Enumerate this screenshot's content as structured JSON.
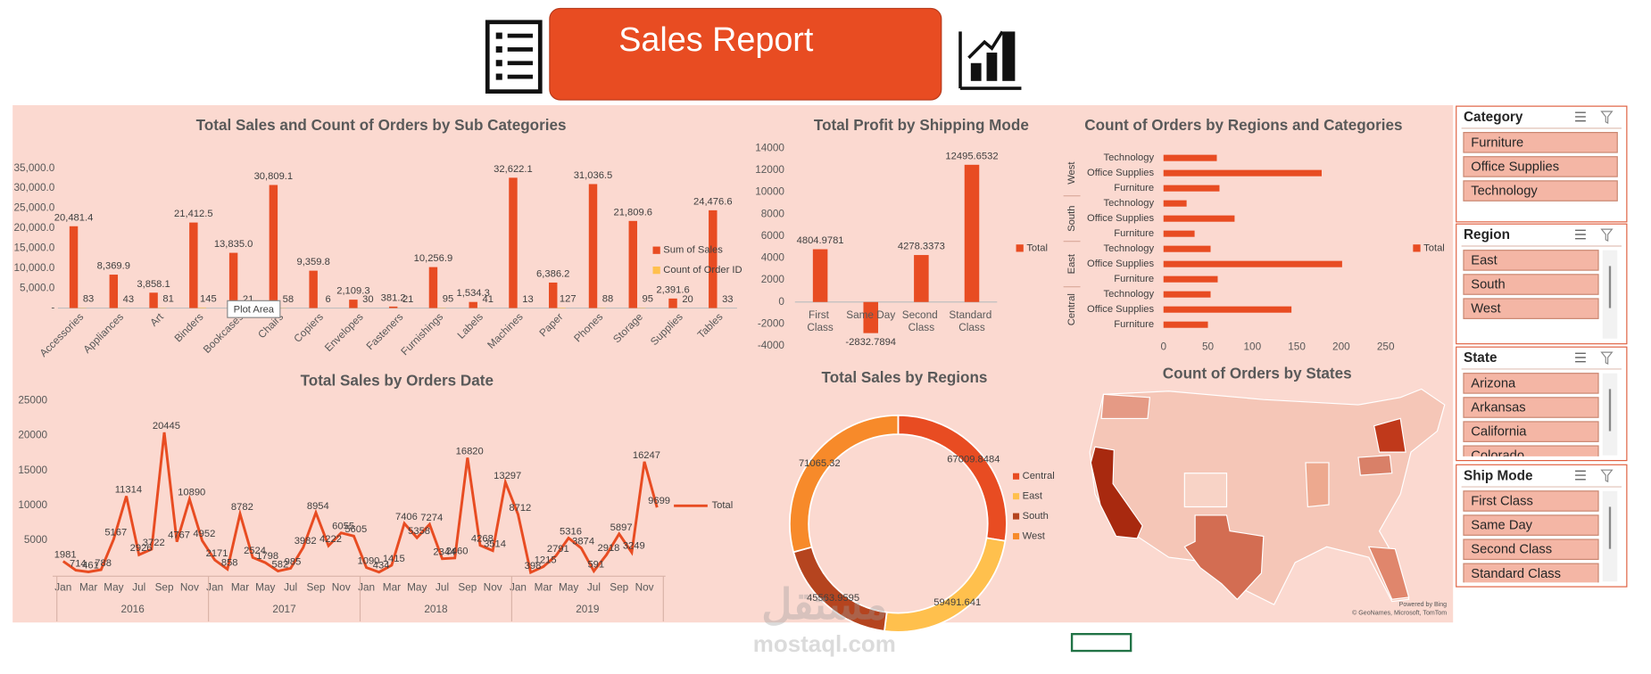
{
  "header": {
    "title": "Sales Report"
  },
  "chart_data": [
    {
      "type": "bar",
      "title": "Total Sales and Count of Orders by Sub Categories",
      "categories": [
        "Accessories",
        "Appliances",
        "Art",
        "Binders",
        "Bookcases",
        "Chairs",
        "Copiers",
        "Envelopes",
        "Fasteners",
        "Furnishings",
        "Labels",
        "Machines",
        "Paper",
        "Phones",
        "Storage",
        "Supplies",
        "Tables"
      ],
      "series": [
        {
          "name": "Sum of Sales",
          "color": "#e84c22",
          "values": [
            20481.4,
            8369.9,
            3858.1,
            21412.5,
            13835.0,
            30809.1,
            9359.8,
            2109.3,
            381.2,
            10256.9,
            1534.3,
            32622.1,
            6386.2,
            31036.5,
            21809.6,
            2391.6,
            24476.6
          ],
          "value_labels": [
            "20,481.4",
            "8,369.9",
            "3,858.1",
            "21,412.5",
            "13,835.0",
            "30,809.1",
            "9,359.8",
            "2,109.3",
            "381.2",
            "10,256.9",
            "1,534.3",
            "32,622.1",
            "6,386.2",
            "31,036.5",
            "21,809.6",
            "2,391.6",
            "24,476.6"
          ]
        },
        {
          "name": "Count of Order ID",
          "color": "#ffc04d",
          "values": [
            83,
            43,
            81,
            145,
            21,
            58,
            6,
            30,
            21,
            95,
            41,
            13,
            127,
            88,
            95,
            20,
            33
          ]
        }
      ],
      "ylim": [
        0,
        35000
      ],
      "yticks": [
        {
          "value": 0,
          "label": "-"
        },
        {
          "value": 5000,
          "label": "5,000.0"
        },
        {
          "value": 10000,
          "label": "10,000.0"
        },
        {
          "value": 15000,
          "label": "15,000.0"
        },
        {
          "value": 20000,
          "label": "20,000.0"
        },
        {
          "value": 25000,
          "label": "25,000.0"
        },
        {
          "value": 30000,
          "label": "30,000.0"
        },
        {
          "value": 35000,
          "label": "35,000.0"
        }
      ],
      "tooltip": "Plot Area"
    },
    {
      "type": "bar",
      "title": "Total Profit by Shipping Mode",
      "categories": [
        "First Class",
        "Same Day",
        "Second Class",
        "Standard Class"
      ],
      "series": [
        {
          "name": "Total",
          "color": "#e84c22",
          "values": [
            4804.9781,
            -2832.7894,
            4278.3373,
            12495.6532
          ]
        }
      ],
      "ylim": [
        -4000,
        14000
      ],
      "yticks": [
        -4000,
        -2000,
        0,
        2000,
        4000,
        6000,
        8000,
        10000,
        12000,
        14000
      ]
    },
    {
      "type": "hbar",
      "title": "Count of Orders by Regions and Categories",
      "groups": [
        {
          "name": "West",
          "categories": [
            "Technology",
            "Office Supplies",
            "Furniture"
          ]
        },
        {
          "name": "South",
          "categories": [
            "Technology",
            "Office Supplies",
            "Furniture"
          ]
        },
        {
          "name": "East",
          "categories": [
            "Technology",
            "Office Supplies",
            "Furniture"
          ]
        },
        {
          "name": "Central",
          "categories": [
            "Technology",
            "Office Supplies",
            "Furniture"
          ]
        }
      ],
      "series": [
        {
          "name": "Total",
          "color": "#e84c22",
          "values": [
            60,
            178,
            63,
            26,
            80,
            35,
            53,
            201,
            61,
            53,
            144,
            50
          ]
        }
      ],
      "xlim": [
        0,
        250
      ],
      "xticks": [
        0,
        50,
        100,
        150,
        200,
        250
      ]
    },
    {
      "type": "line",
      "title": "Total Sales by Orders Date",
      "categories": [
        "Jan",
        null,
        "Mar",
        null,
        "May",
        null,
        "Jul",
        null,
        "Sep",
        null,
        "Nov",
        null,
        "Jan",
        null,
        "Mar",
        null,
        "May",
        null,
        "Jul",
        null,
        "Sep",
        null,
        "Nov",
        null,
        "Jan",
        null,
        "Mar",
        null,
        "May",
        null,
        "Jul",
        null,
        "Sep",
        null,
        "Nov",
        null,
        "Jan",
        null,
        "Mar",
        null,
        "May",
        null,
        "Jul",
        null,
        "Sep",
        null,
        "Nov",
        null
      ],
      "x_groups": [
        "2016",
        "2017",
        "2018",
        "2019"
      ],
      "series": [
        {
          "name": "Total",
          "color": "#e84c22",
          "values": [
            1981,
            714,
            461,
            788,
            5167,
            11314,
            2926,
            3722,
            20445,
            4767,
            10890,
            4952,
            2171,
            858,
            8782,
            2524,
            1798,
            582,
            985,
            3982,
            8954,
            4222,
            6055,
            5605,
            1090,
            434,
            1415,
            7406,
            5358,
            7274,
            2344,
            2460,
            16820,
            4268,
            3514,
            13297,
            8712,
            398,
            1215,
            2791,
            5316,
            3874,
            591,
            2918,
            5897,
            3249,
            16247,
            9699
          ]
        }
      ],
      "ylim": [
        0,
        25000
      ],
      "yticks": [
        5000,
        10000,
        15000,
        20000,
        25000
      ]
    },
    {
      "type": "donut",
      "title": "Total Sales by Regions",
      "categories": [
        "Central",
        "East",
        "South",
        "West"
      ],
      "values": [
        67009.8484,
        59491.641,
        45563.9595,
        71065.32
      ],
      "colors": [
        "#e84c22",
        "#ffc04d",
        "#b5441f",
        "#f78a2a"
      ]
    },
    {
      "type": "map",
      "title": "Count of Orders by States",
      "credits": [
        "Powered by Bing",
        "© GeoNames, Microsoft, TomTom"
      ]
    }
  ],
  "slicers": [
    {
      "title": "Category",
      "items": [
        "Furniture",
        "Office Supplies",
        "Technology"
      ]
    },
    {
      "title": "Region",
      "items": [
        "East",
        "South",
        "West"
      ]
    },
    {
      "title": "State",
      "items": [
        "Arizona",
        "Arkansas",
        "California",
        "Colorado"
      ]
    },
    {
      "title": "Ship Mode",
      "items": [
        "First Class",
        "Same Day",
        "Second Class",
        "Standard Class"
      ]
    }
  ],
  "watermark": {
    "arabic": "مستقل",
    "latin": "mostaql.com"
  }
}
